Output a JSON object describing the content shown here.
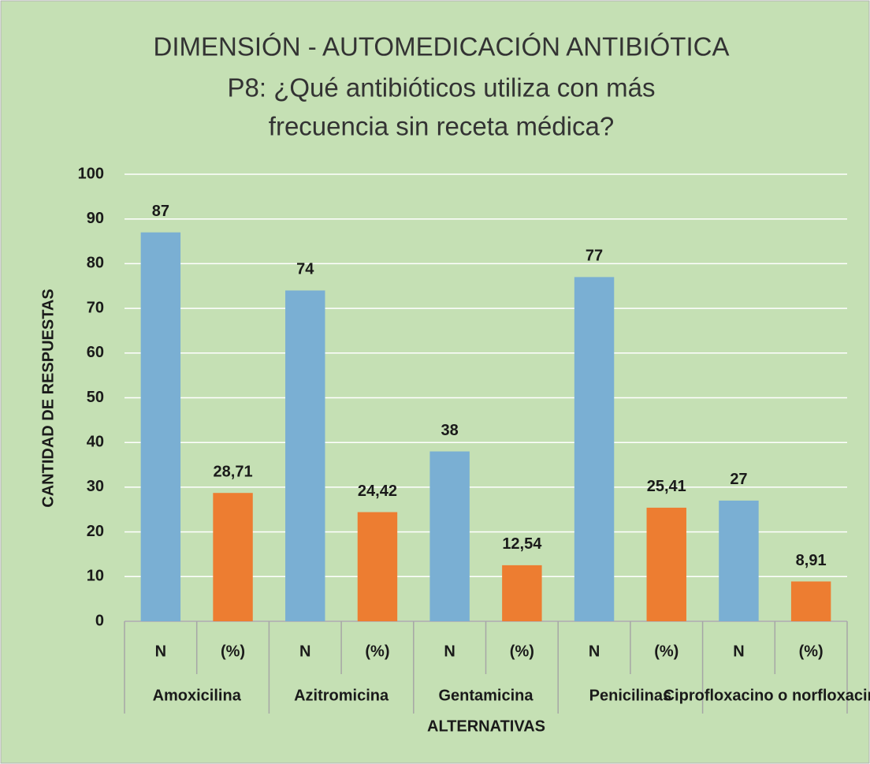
{
  "chart_data": {
    "type": "bar",
    "title": [
      "DIMENSIÓN - AUTOMEDICACIÓN ANTIBIÓTICA",
      "P8: ¿Qué antibióticos utiliza con más",
      "frecuencia sin receta  médica?"
    ],
    "x_label": "ALTERNATIVAS",
    "y_label": "CANTIDAD DE RESPUESTAS",
    "categories": [
      "N",
      "(%)",
      "N",
      "(%)",
      "N",
      "(%)",
      "N",
      "(%)",
      "N",
      "(%)"
    ],
    "groups": [
      "Amoxicilina",
      "Azitromicina",
      "Gentamicina",
      "Penicilinas",
      "Ciprofloxacino  o norfloxacino"
    ],
    "values": [
      87,
      28.71,
      74,
      24.42,
      38,
      12.54,
      77,
      25.41,
      27,
      8.91
    ],
    "value_labels": [
      "87",
      "28,71",
      "74",
      "24,42",
      "38",
      "12,54",
      "77",
      "25,41",
      "27",
      "8,91"
    ],
    "colors": [
      "#7aafd3",
      "#ed7d31",
      "#7aafd3",
      "#ed7d31",
      "#7aafd3",
      "#ed7d31",
      "#7aafd3",
      "#ed7d31",
      "#7aafd3",
      "#ed7d31"
    ],
    "ylim": [
      0,
      100
    ],
    "yticks": [
      0,
      10,
      20,
      30,
      40,
      50,
      60,
      70,
      80,
      90,
      100
    ],
    "grid": true
  }
}
